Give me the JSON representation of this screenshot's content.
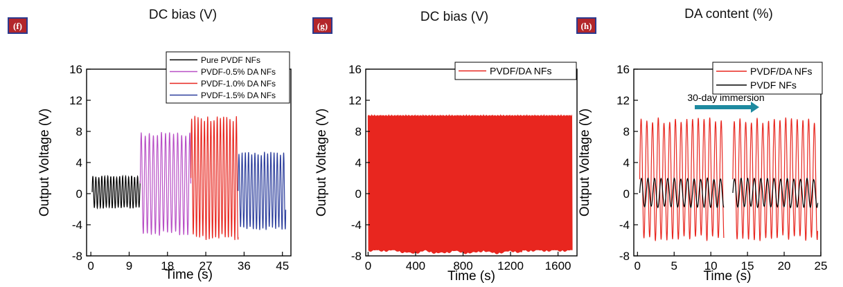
{
  "chart_data": [
    {
      "type": "line",
      "panel": "(f)",
      "header": "DC bias (V)",
      "xlabel": "Time (s)",
      "ylabel": "Output Voltage (V)",
      "xlim": [
        -1,
        47
      ],
      "ylim": [
        -8,
        16
      ],
      "xticks": [
        0,
        9,
        18,
        27,
        36,
        45
      ],
      "yticks": [
        -8,
        -4,
        0,
        4,
        8,
        12,
        16
      ],
      "legend_position": "top-right",
      "series": [
        {
          "name": "Pure PVDF NFs",
          "color": "#000000",
          "x_range": [
            0.3,
            11.6
          ],
          "max": 2.3,
          "min": -1.9,
          "period": 0.7
        },
        {
          "name": "PVDF-0.5% DA NFs",
          "color": "#b84fc6",
          "x_range": [
            11.6,
            23.5
          ],
          "max": 8.0,
          "min": -5.4,
          "period": 0.95
        },
        {
          "name": "PVDF-1.0% DA NFs",
          "color": "#e8261f",
          "x_range": [
            23.5,
            34.6
          ],
          "max": 10.0,
          "min": -6.0,
          "period": 0.75
        },
        {
          "name": "PVDF-1.5% DA NFs",
          "color": "#2c3e9c",
          "x_range": [
            34.6,
            45.8
          ],
          "max": 5.4,
          "min": -4.7,
          "period": 0.75
        }
      ]
    },
    {
      "type": "area",
      "panel": "(g)",
      "header": "DC bias (V)",
      "xlabel": "Time (s)",
      "ylabel": "Output Voltage (V)",
      "xlim": [
        -20,
        1760
      ],
      "ylim": [
        -8,
        16
      ],
      "xticks": [
        0,
        400,
        800,
        1200,
        1600
      ],
      "yticks": [
        -8,
        -4,
        0,
        4,
        8,
        12,
        16
      ],
      "legend_position": "top-right",
      "series": [
        {
          "name": "PVDF/DA NFs",
          "color": "#e8261f",
          "x_range": [
            0,
            1720
          ],
          "max": 10.0,
          "min": -7.2
        }
      ]
    },
    {
      "type": "line",
      "panel": "(h)",
      "header": "DA content (%)",
      "xlabel": "Time (s)",
      "ylabel": "Output Voltage (V)",
      "xlim": [
        -0.5,
        25
      ],
      "ylim": [
        -8,
        16
      ],
      "xticks": [
        0,
        5,
        10,
        15,
        20,
        25
      ],
      "yticks": [
        -8,
        -4,
        0,
        4,
        8,
        12,
        16
      ],
      "legend_position": "top-right",
      "annotation": "30-day immersion",
      "series": [
        {
          "name": "PVDF/DA NFs",
          "color": "#e8261f",
          "segments": [
            [
              0.3,
              11.8
            ],
            [
              13.0,
              24.6
            ]
          ],
          "max": 9.8,
          "min": -6.1,
          "period": 0.78
        },
        {
          "name": "PVDF NFs",
          "color": "#000000",
          "segments": [
            [
              0.3,
              11.8
            ],
            [
              13.0,
              24.6
            ]
          ],
          "max": 2.0,
          "min": -1.8,
          "period": 0.9
        }
      ]
    }
  ]
}
